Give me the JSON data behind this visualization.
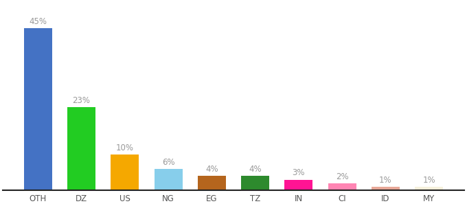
{
  "categories": [
    "OTH",
    "DZ",
    "US",
    "NG",
    "EG",
    "TZ",
    "IN",
    "CI",
    "ID",
    "MY"
  ],
  "values": [
    45,
    23,
    10,
    6,
    4,
    4,
    3,
    2,
    1,
    1
  ],
  "bar_colors": [
    "#4472c4",
    "#22cc22",
    "#f5a800",
    "#87ceeb",
    "#b5651d",
    "#2d8a2d",
    "#ff1493",
    "#ff85b3",
    "#e8a898",
    "#f5f0dc"
  ],
  "labels": [
    "45%",
    "23%",
    "10%",
    "6%",
    "4%",
    "4%",
    "3%",
    "2%",
    "1%",
    "1%"
  ],
  "ylim": [
    0,
    52
  ],
  "background_color": "#ffffff",
  "label_fontsize": 8.5,
  "tick_fontsize": 8.5,
  "label_color": "#999999"
}
